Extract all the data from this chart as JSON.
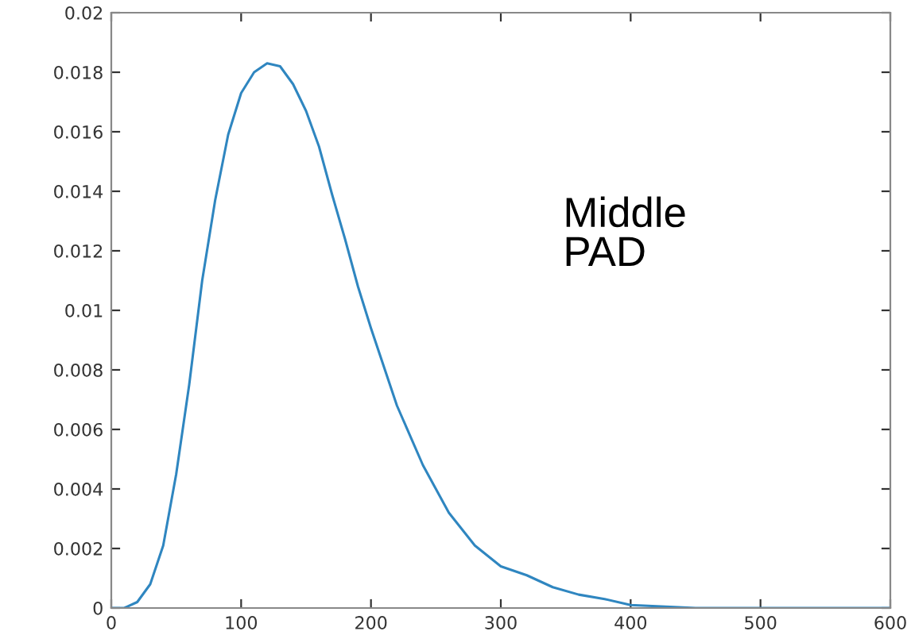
{
  "chart_data": {
    "type": "line",
    "x": [
      0,
      10,
      20,
      30,
      40,
      50,
      60,
      70,
      80,
      90,
      100,
      110,
      120,
      130,
      140,
      150,
      160,
      170,
      180,
      190,
      200,
      220,
      240,
      260,
      280,
      300,
      320,
      340,
      360,
      380,
      400,
      450,
      500,
      550,
      600
    ],
    "series": [
      {
        "color": "#2f86c0",
        "values": [
          0,
          0,
          0.0002,
          0.0008,
          0.0021,
          0.0045,
          0.0075,
          0.011,
          0.0137,
          0.0159,
          0.0173,
          0.018,
          0.0183,
          0.0182,
          0.0176,
          0.0167,
          0.0155,
          0.0139,
          0.0124,
          0.0108,
          0.0094,
          0.0068,
          0.0048,
          0.0032,
          0.0021,
          0.0014,
          0.0011,
          0.0007,
          0.00045,
          0.0003,
          0.0001,
          0,
          0,
          0,
          0
        ]
      }
    ],
    "xlim": [
      0,
      600
    ],
    "xticks": [
      0,
      100,
      200,
      300,
      400,
      500,
      600
    ],
    "ylim": [
      0,
      0.02
    ],
    "yticks": [
      0,
      0.002,
      0.004,
      0.006,
      0.008,
      0.01,
      0.012,
      0.014,
      0.016,
      0.018,
      0.02
    ],
    "annotations": [
      "Middle\nPAD"
    ],
    "grid": false,
    "legend": false
  }
}
